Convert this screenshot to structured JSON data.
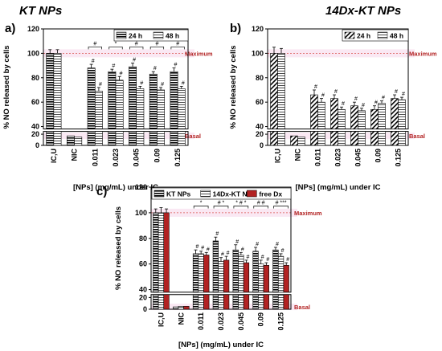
{
  "panels_meta": {
    "a": {
      "letter": "a)",
      "title": "KT NPs"
    },
    "b": {
      "letter": "b)",
      "title": "14Dx-KT NPs"
    },
    "c": {
      "letter": "c)",
      "title": ""
    }
  },
  "colors": {
    "bar_fill": "#000000",
    "hatch_light": "#ffffff",
    "free_dx": "#b22222",
    "maximum_line": "#d9534f",
    "reference_label": "#b22222",
    "axis_band": "#f4cde4"
  },
  "chart_data": [
    {
      "panel": "a",
      "type": "bar",
      "title": "KT NPs",
      "xlabel": "[NPs] (mg/mL) under IC",
      "ylabel": "% NO released by cells",
      "categories": [
        "IC,U",
        "NIC",
        "0.011",
        "0.023",
        "0.045",
        "0.09",
        "0.125"
      ],
      "ylim": [
        0,
        120
      ],
      "axis_break": [
        25,
        38
      ],
      "yticks": [
        "0",
        "20",
        "40",
        "60",
        "80",
        "100",
        "120"
      ],
      "legend": "top-right",
      "series": [
        {
          "name": "24 h",
          "values": [
            100,
            17,
            88,
            85,
            89,
            83,
            85
          ],
          "errors": [
            3,
            0,
            3,
            2,
            3,
            2,
            3
          ],
          "sig": [
            "",
            "",
            "#",
            "#",
            "#",
            "#",
            "#"
          ]
        },
        {
          "name": "48 h",
          "values": [
            100,
            15,
            69,
            78,
            71,
            70,
            71
          ],
          "errors": [
            3,
            0,
            3,
            3,
            2,
            2,
            2
          ],
          "sig": [
            "",
            "",
            "#",
            "#",
            "#",
            "#",
            "#"
          ]
        }
      ],
      "comparisons": [
        "#",
        "*",
        "#",
        "#",
        "#"
      ],
      "references": [
        {
          "label": "Maximum",
          "value": 100
        },
        {
          "label": "Basal",
          "value": 17
        }
      ]
    },
    {
      "panel": "b",
      "type": "bar",
      "title": "14Dx-KT NPs",
      "xlabel": "[NPs] (mg/mL) under IC",
      "ylabel": "% NO released by cells",
      "categories": [
        "IC,U",
        "NIC",
        "0.011",
        "0.023",
        "0.045",
        "0.09",
        "0.125"
      ],
      "ylim": [
        0,
        120
      ],
      "axis_break": [
        25,
        38
      ],
      "yticks": [
        "0",
        "20",
        "40",
        "60",
        "80",
        "100",
        "120"
      ],
      "legend": "top-right",
      "series": [
        {
          "name": "24 h",
          "values": [
            100,
            17,
            66,
            63,
            57,
            54,
            63
          ],
          "errors": [
            5,
            0,
            4,
            3,
            3,
            3,
            3
          ],
          "sig": [
            "",
            "",
            "#",
            "#",
            "#",
            "#",
            "#"
          ]
        },
        {
          "name": "48 h",
          "values": [
            100,
            15,
            60,
            54,
            53,
            59,
            62
          ],
          "errors": [
            4,
            0,
            3,
            2,
            2,
            2,
            2
          ],
          "sig": [
            "",
            "",
            "#",
            "#",
            "#",
            "#",
            "#"
          ]
        }
      ],
      "references": [
        {
          "label": "Maximum",
          "value": 100
        },
        {
          "label": "Basal",
          "value": 17
        }
      ]
    },
    {
      "panel": "c",
      "type": "bar",
      "title": "",
      "xlabel": "[NPs] (mg/mL) under IC",
      "ylabel": "% NO released by cells",
      "categories": [
        "IC,U",
        "NIC",
        "0.011",
        "0.023",
        "0.045",
        "0.09",
        "0.125"
      ],
      "ylim": [
        0,
        120
      ],
      "axis_break": [
        25,
        38
      ],
      "yticks": [
        "0",
        "20",
        "40",
        "60",
        "80",
        "100",
        "120"
      ],
      "legend": "top-left",
      "series": [
        {
          "name": "KT NPs",
          "values": [
            100,
            4,
            68,
            78,
            71,
            70,
            71
          ],
          "errors": [
            3,
            0,
            3,
            3,
            4,
            3,
            2
          ],
          "sig": [
            "",
            "",
            "#",
            "#",
            "#",
            "#",
            "#"
          ]
        },
        {
          "name": "14Dx-KT NPs",
          "values": [
            100,
            5,
            68,
            62,
            67,
            60,
            66
          ],
          "errors": [
            4,
            0,
            2,
            3,
            2,
            3,
            2
          ],
          "sig": [
            "",
            "",
            "#",
            "#",
            "#",
            "#",
            "#"
          ]
        },
        {
          "name": "free Dx",
          "values": [
            100,
            5,
            67,
            63,
            61,
            59,
            59
          ],
          "errors": [
            3,
            0,
            2,
            3,
            2,
            2,
            2
          ],
          "sig": [
            "",
            "",
            "#",
            "#",
            "#",
            "#",
            "#"
          ]
        }
      ],
      "comparisons": [
        "*",
        "# *",
        "* # *",
        "# #",
        "# ***"
      ],
      "references": [
        {
          "label": "Maximum",
          "value": 100
        },
        {
          "label": "Basal",
          "value": 4
        }
      ]
    }
  ]
}
